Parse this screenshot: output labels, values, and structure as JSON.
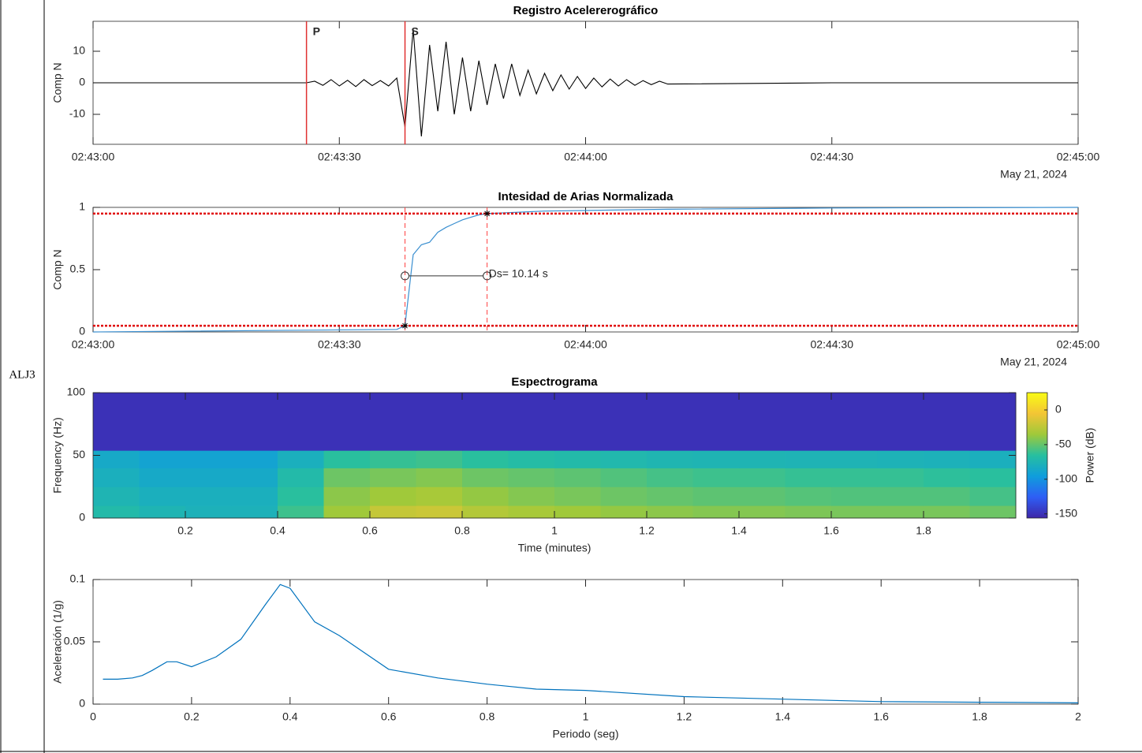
{
  "row_label": "ALJ3",
  "chart_data": [
    {
      "type": "line",
      "title": "Registro Acelererográfico",
      "ylabel": "Comp N",
      "date_label": "May 21, 2024",
      "color": "#000000",
      "xlim": [
        "02:43:00",
        "02:45:00"
      ],
      "xticks": [
        "02:43:00",
        "02:43:30",
        "02:44:00",
        "02:44:30",
        "02:45:00"
      ],
      "ylim": [
        -19.5,
        19.5
      ],
      "yticks": [
        -10,
        0,
        10
      ],
      "markers": [
        {
          "label": "P",
          "x": "02:43:26",
          "color": "#e03030"
        },
        {
          "label": "S",
          "x": "02:43:38",
          "color": "#e03030"
        }
      ],
      "x": [
        "02:43:00",
        "02:43:26",
        "02:43:27",
        "02:43:28",
        "02:43:29",
        "02:43:30",
        "02:43:31",
        "02:43:32",
        "02:43:33",
        "02:43:34",
        "02:43:35",
        "02:43:36",
        "02:43:37",
        "02:43:38",
        "02:43:39",
        "02:43:40",
        "02:43:41",
        "02:43:42",
        "02:43:43",
        "02:43:44",
        "02:43:45",
        "02:43:46",
        "02:43:47",
        "02:43:48",
        "02:43:49",
        "02:43:50",
        "02:43:51",
        "02:43:52",
        "02:43:53",
        "02:43:54",
        "02:43:55",
        "02:43:56",
        "02:43:57",
        "02:43:58",
        "02:43:59",
        "02:44:00",
        "02:44:01",
        "02:44:02",
        "02:44:03",
        "02:44:04",
        "02:44:05",
        "02:44:06",
        "02:44:07",
        "02:44:08",
        "02:44:09",
        "02:44:10",
        "02:44:30",
        "02:45:00"
      ],
      "values": [
        0,
        0,
        0.5,
        -0.8,
        1,
        -1,
        0.8,
        -1.2,
        1,
        -0.9,
        0.7,
        -1,
        1.5,
        -14,
        17,
        -17,
        12,
        -9,
        13,
        -10,
        8,
        -9,
        7,
        -7,
        6,
        -5,
        6,
        -4,
        4,
        -3.5,
        3,
        -2.5,
        2.5,
        -2,
        2,
        -1.8,
        1.5,
        -1.3,
        1.2,
        -1,
        1,
        -0.8,
        0.7,
        -0.6,
        0.5,
        -0.4,
        0,
        0
      ]
    },
    {
      "type": "line",
      "title": "Intesidad de Arias Normalizada",
      "ylabel": "Comp N",
      "date_label": "May 21, 2024",
      "color": "#3a8fd0",
      "xlim": [
        "02:43:00",
        "02:45:00"
      ],
      "xticks": [
        "02:43:00",
        "02:43:30",
        "02:44:00",
        "02:44:30",
        "02:45:00"
      ],
      "ylim": [
        0,
        1
      ],
      "yticks": [
        0,
        0.5,
        1
      ],
      "thresholds": [
        0.05,
        0.95
      ],
      "interval": [
        "02:43:38",
        "02:43:48"
      ],
      "annotation": {
        "text": "Ds= 10.14 s",
        "y": 0.45
      },
      "x": [
        "02:43:00",
        "02:43:37",
        "02:43:38",
        "02:43:39",
        "02:43:40",
        "02:43:41",
        "02:43:42",
        "02:43:43",
        "02:43:44",
        "02:43:45",
        "02:43:46",
        "02:43:47",
        "02:43:48",
        "02:43:55",
        "02:44:10",
        "02:44:30",
        "02:45:00"
      ],
      "values": [
        0,
        0.02,
        0.05,
        0.62,
        0.7,
        0.72,
        0.8,
        0.84,
        0.87,
        0.9,
        0.92,
        0.94,
        0.95,
        0.97,
        0.985,
        0.995,
        1
      ]
    },
    {
      "type": "heatmap",
      "title": "Espectrograma",
      "xlabel": "Time (minutes)",
      "ylabel": "Frequency (Hz)",
      "xlim": [
        0,
        2
      ],
      "xticks": [
        0.2,
        0.4,
        0.6,
        0.8,
        1,
        1.2,
        1.4,
        1.6,
        1.8
      ],
      "ylim": [
        0,
        100
      ],
      "yticks": [
        0,
        50,
        100
      ],
      "x": [
        0.05,
        0.15,
        0.25,
        0.35,
        0.45,
        0.55,
        0.65,
        0.75,
        0.85,
        0.95,
        1.05,
        1.15,
        1.25,
        1.35,
        1.45,
        1.55,
        1.65,
        1.75,
        1.85,
        1.95
      ],
      "y_bins": [
        0,
        10,
        25,
        40,
        54,
        100
      ],
      "values": [
        [
          -70,
          -75,
          -78,
          -78,
          -60,
          -35,
          -22,
          -20,
          -28,
          -32,
          -35,
          -38,
          -40,
          -42,
          -42,
          -44,
          -45,
          -45,
          -45,
          -48
        ],
        [
          -75,
          -80,
          -80,
          -80,
          -65,
          -40,
          -35,
          -32,
          -38,
          -42,
          -45,
          -48,
          -50,
          -52,
          -52,
          -54,
          -55,
          -55,
          -55,
          -58
        ],
        [
          -80,
          -85,
          -85,
          -85,
          -70,
          -48,
          -45,
          -42,
          -48,
          -50,
          -52,
          -55,
          -58,
          -60,
          -60,
          -62,
          -62,
          -62,
          -64,
          -65
        ],
        [
          -85,
          -90,
          -90,
          -90,
          -80,
          -65,
          -62,
          -60,
          -65,
          -68,
          -70,
          -72,
          -74,
          -75,
          -75,
          -76,
          -76,
          -77,
          -78,
          -80
        ],
        [
          -150,
          -150,
          -150,
          -150,
          -150,
          -150,
          -150,
          -150,
          -150,
          -150,
          -150,
          -150,
          -150,
          -150,
          -150,
          -150,
          -150,
          -150,
          -150,
          -150
        ]
      ],
      "colormap": [
        "#3e26a8",
        "#2e5ef5",
        "#0f9ddc",
        "#27bfa0",
        "#9fc93a",
        "#f3c535",
        "#f9fb15"
      ],
      "colorbar": {
        "label": "Power (dB)",
        "lim": [
          -156,
          25
        ],
        "ticks": [
          0,
          -50,
          -100,
          -150
        ]
      }
    },
    {
      "type": "line",
      "xlabel": "Periodo (seg)",
      "ylabel": "Aceleración (1/g)",
      "color": "#0072bd",
      "xlim": [
        0,
        2
      ],
      "xticks": [
        0,
        0.2,
        0.4,
        0.6,
        0.8,
        1,
        1.2,
        1.4,
        1.6,
        1.8,
        2
      ],
      "ylim": [
        0,
        0.1
      ],
      "yticks": [
        0,
        0.05,
        0.1
      ],
      "x": [
        0.02,
        0.05,
        0.08,
        0.1,
        0.12,
        0.15,
        0.17,
        0.2,
        0.25,
        0.3,
        0.35,
        0.38,
        0.4,
        0.45,
        0.5,
        0.6,
        0.7,
        0.8,
        0.9,
        1,
        1.2,
        1.4,
        1.6,
        1.8,
        2
      ],
      "values": [
        0.02,
        0.02,
        0.021,
        0.023,
        0.027,
        0.034,
        0.034,
        0.03,
        0.038,
        0.052,
        0.08,
        0.096,
        0.093,
        0.066,
        0.055,
        0.028,
        0.021,
        0.016,
        0.012,
        0.011,
        0.006,
        0.004,
        0.002,
        0.0015,
        0.001
      ]
    }
  ]
}
